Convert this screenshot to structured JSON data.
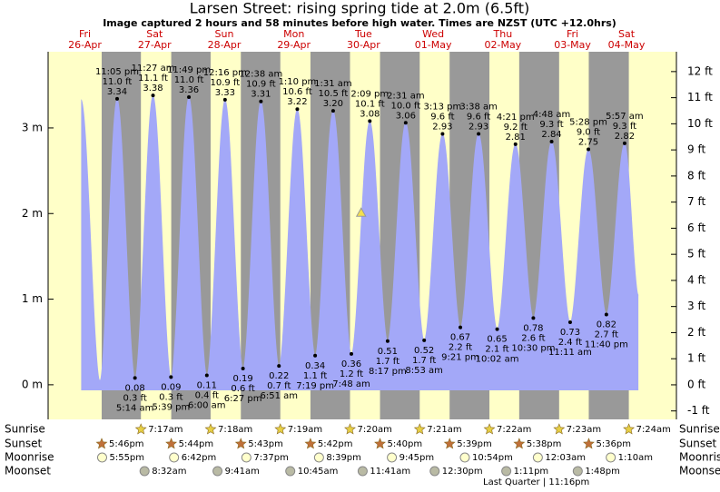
{
  "chart_data": {
    "type": "tide",
    "title": "Larsen Street: rising  spring tide at 2.0m (6.5ft)",
    "subtitle": "Image captured 2 hours and 58 minutes before high water. Times are NZST (UTC +12.0hrs)",
    "days": {
      "names": [
        "Fri",
        "Sat",
        "Sun",
        "Mon",
        "Tue",
        "Wed",
        "Thu",
        "Fri",
        "Sat"
      ],
      "dates": [
        "26-Apr",
        "27-Apr",
        "28-Apr",
        "29-Apr",
        "30-Apr",
        "01-May",
        "02-May",
        "03-May",
        "04-May"
      ]
    },
    "xlim": [
      -0.69,
      215.8
    ],
    "ylim": [
      -0.33,
      3.89
    ],
    "yticks": [
      {
        "value": 0,
        "label": "0 m"
      },
      {
        "value": 1,
        "label": "1 m"
      },
      {
        "value": 2,
        "label": "2 m"
      },
      {
        "value": 3,
        "label": "3 m"
      }
    ],
    "y2lim": [
      -1.08,
      12.76
    ],
    "y2ticks": [
      {
        "value": -1,
        "label": "-1 ft"
      },
      {
        "value": 0,
        "label": "0 ft"
      },
      {
        "value": 1,
        "label": "1 ft"
      },
      {
        "value": 2,
        "label": "2 ft"
      },
      {
        "value": 3,
        "label": "3 ft"
      },
      {
        "value": 4,
        "label": "4 ft"
      },
      {
        "value": 5,
        "label": "5 ft"
      },
      {
        "value": 6,
        "label": "6 ft"
      },
      {
        "value": 7,
        "label": "7 ft"
      },
      {
        "value": 8,
        "label": "8 ft"
      },
      {
        "value": 9,
        "label": "9 ft"
      },
      {
        "value": 10,
        "label": "10 ft"
      },
      {
        "value": 11,
        "label": "11 ft"
      },
      {
        "value": 12,
        "label": "12 ft"
      }
    ],
    "tide": {
      "color": "#a3a8f8",
      "x": [
        10.7,
        17.15,
        23.083,
        29.233,
        35.45,
        41.65,
        47.817,
        54.0,
        60.267,
        66.45,
        72.633,
        78.85,
        85.167,
        91.317,
        97.517,
        103.8,
        110.15,
        116.283,
        122.517,
        128.883,
        135.217,
        141.35,
        147.633,
        154.033,
        160.35,
        166.5,
        172.8,
        179.183,
        185.467,
        191.667,
        197.95,
        202.7
      ],
      "values": [
        3.33,
        0.05,
        3.34,
        0.08,
        3.38,
        0.09,
        3.36,
        0.11,
        3.33,
        0.19,
        3.31,
        0.22,
        3.22,
        0.34,
        3.2,
        0.36,
        3.08,
        0.51,
        3.06,
        0.52,
        2.93,
        0.67,
        2.93,
        0.65,
        2.81,
        0.78,
        2.84,
        0.73,
        2.75,
        0.82,
        2.82,
        1.05
      ],
      "value_labels": [
        null,
        null,
        "3.34",
        "0.08",
        "3.38",
        "0.09",
        "3.36",
        "0.11",
        "3.33",
        "0.19",
        "3.31",
        "0.22",
        "3.22",
        "0.34",
        "3.20",
        "0.36",
        "3.08",
        "0.51",
        "3.06",
        "0.52",
        "2.93",
        "0.67",
        "2.93",
        "0.65",
        "2.81",
        "0.78",
        "2.84",
        "0.73",
        "2.75",
        "0.82",
        "2.82",
        null
      ],
      "feet_labels": [
        null,
        null,
        "11.0 ft",
        "0.3 ft",
        "11.1 ft",
        "0.3 ft",
        "11.0 ft",
        "0.4 ft",
        "10.9 ft",
        "0.6 ft",
        "10.9 ft",
        "0.7 ft",
        "10.6 ft",
        "1.1 ft",
        "10.5 ft",
        "1.2 ft",
        "10.1 ft",
        "1.7 ft",
        "10.0 ft",
        "1.7 ft",
        "9.6 ft",
        "2.2 ft",
        "9.6 ft",
        "2.1 ft",
        "9.2 ft",
        "2.6 ft",
        "9.3 ft",
        "2.4 ft",
        "9.0 ft",
        "2.7 ft",
        "9.3 ft",
        null
      ],
      "time_labels": [
        null,
        null,
        "11:05 pm",
        "5:14 am",
        "11:27 am",
        "5:39 pm",
        "11:49 pm",
        "6:00 am",
        "12:16 pm",
        "6:27 pm",
        "12:38 am",
        "6:51 am",
        "1:10 pm",
        "7:19 pm",
        "1:31 am",
        "7:48 am",
        "2:09 pm",
        "8:17 pm",
        "2:31 am",
        "8:53 am",
        "3:13 pm",
        "9:21 pm",
        "3:38 am",
        "10:02 am",
        "4:21 pm",
        "10:30 pm",
        "4:48 am",
        "11:11 am",
        "5:28 pm",
        "11:40 pm",
        "5:57 am",
        null
      ]
    },
    "marker": {
      "x": 107.17,
      "value": 2,
      "color": "#f4e04d"
    },
    "sunrise": {
      "label": "Sunrise",
      "color": "#e6cf45",
      "x": [
        31.283,
        55.3,
        79.317,
        103.333,
        127.35,
        151.367,
        175.383,
        199.4
      ],
      "times": [
        "7:17am",
        "7:18am",
        "7:19am",
        "7:20am",
        "7:21am",
        "7:22am",
        "7:23am",
        "7:24am"
      ]
    },
    "sunset": {
      "label": "Sunset",
      "color": "#c0703a",
      "x": [
        17.767,
        41.733,
        65.717,
        89.7,
        113.667,
        137.65,
        161.633,
        185.6
      ],
      "times": [
        "5:46pm",
        "5:44pm",
        "5:43pm",
        "5:42pm",
        "5:40pm",
        "5:39pm",
        "5:38pm",
        "5:36pm"
      ]
    },
    "moonrise": {
      "label": "Moonrise",
      "color": "#ffffcc",
      "x": [
        17.917,
        42.7,
        67.617,
        92.65,
        117.75,
        142.9,
        168.05,
        193.167
      ],
      "times": [
        "5:55pm",
        "6:42pm",
        "7:37pm",
        "8:39pm",
        "9:45pm",
        "10:54pm",
        "12:03am",
        "1:10am"
      ]
    },
    "moonset": {
      "label": "Moonset",
      "color": "#b9baa4",
      "x": [
        32.533,
        57.683,
        82.75,
        107.683,
        132.5,
        157.183,
        181.8
      ],
      "times": [
        "8:32am",
        "9:41am",
        "10:45am",
        "11:41am",
        "12:30pm",
        "1:11pm",
        "1:48pm"
      ]
    },
    "moon_phase": "Last Quarter | 11:16pm"
  }
}
